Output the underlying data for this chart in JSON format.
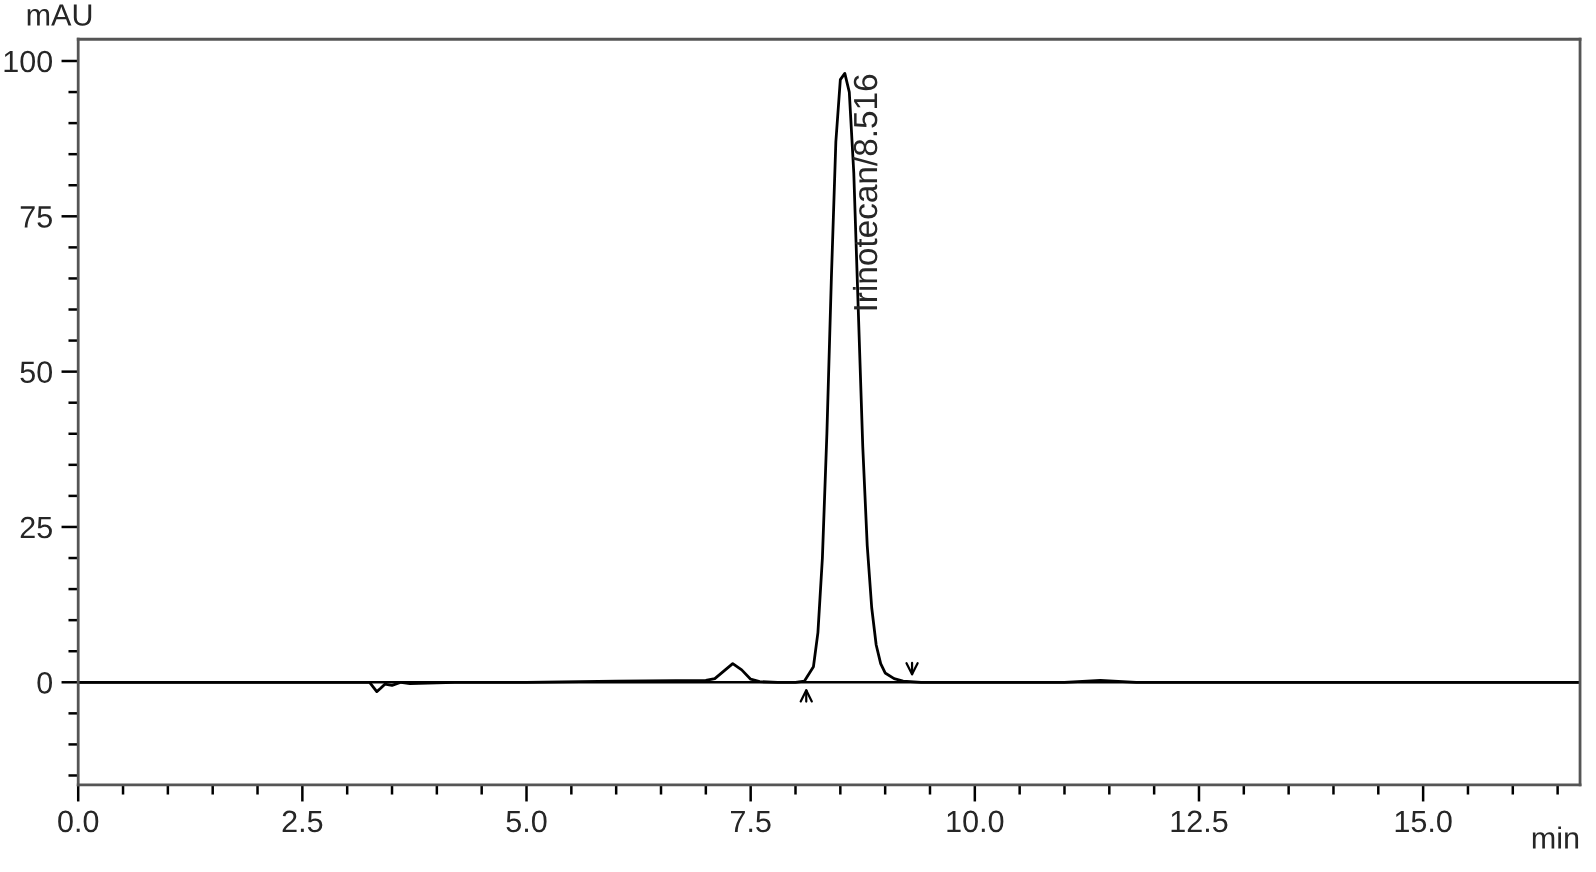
{
  "chart_data": {
    "type": "line",
    "xlabel": "min",
    "ylabel": "mAU",
    "series": [
      {
        "color": "#000000",
        "x": [
          0,
          1.0,
          2.0,
          3.0,
          3.25,
          3.33,
          3.37,
          3.42,
          3.5,
          3.6,
          3.7,
          4.2,
          5.0,
          6.0,
          7.0,
          7.1,
          7.2,
          7.3,
          7.4,
          7.5,
          7.6,
          7.8,
          8.0,
          8.1,
          8.2,
          8.25,
          8.3,
          8.35,
          8.4,
          8.45,
          8.5,
          8.55,
          8.6,
          8.65,
          8.7,
          8.75,
          8.8,
          8.85,
          8.9,
          8.95,
          9.0,
          9.1,
          9.2,
          9.4,
          10.0,
          11.0,
          11.4,
          11.8,
          13.0,
          16.75
        ],
        "values": [
          0,
          0,
          0,
          0,
          0,
          -1.5,
          -1.0,
          -0.3,
          -0.5,
          0,
          -0.2,
          0,
          0,
          0.2,
          0.3,
          0.6,
          1.8,
          3.0,
          2.0,
          0.5,
          0.1,
          0,
          0,
          0.2,
          2.5,
          8,
          20,
          40,
          65,
          87,
          97,
          98,
          95,
          82,
          60,
          38,
          22,
          12,
          6,
          3,
          1.5,
          0.6,
          0.2,
          0,
          0,
          0,
          0.3,
          0,
          0,
          0
        ]
      }
    ],
    "annotations": [
      {
        "text": "Irinotecan/8.516",
        "x": 8.516,
        "y": 98
      }
    ],
    "xlim": [
      0,
      16.75
    ],
    "ylim": [
      -16.5,
      103.5
    ],
    "xticks": [
      {
        "value": 0,
        "label": "0.0"
      },
      {
        "value": 0.5,
        "label": null
      },
      {
        "value": 1,
        "label": null
      },
      {
        "value": 1.5,
        "label": null
      },
      {
        "value": 2,
        "label": null
      },
      2.5,
      {
        "value": 3,
        "label": null
      },
      {
        "value": 3.5,
        "label": null
      },
      {
        "value": 4,
        "label": null
      },
      {
        "value": 4.5,
        "label": null
      },
      {
        "value": 5,
        "label": "5.0"
      },
      {
        "value": 5.5,
        "label": null
      },
      {
        "value": 6,
        "label": null
      },
      {
        "value": 6.5,
        "label": null
      },
      {
        "value": 7,
        "label": null
      },
      7.5,
      {
        "value": 8,
        "label": null
      },
      {
        "value": 8.5,
        "label": null
      },
      {
        "value": 9,
        "label": null
      },
      {
        "value": 9.5,
        "label": null
      },
      {
        "value": 10,
        "label": "10.0"
      },
      {
        "value": 10.5,
        "label": null
      },
      {
        "value": 11,
        "label": null
      },
      {
        "value": 11.5,
        "label": null
      },
      {
        "value": 12,
        "label": null
      },
      12.5,
      {
        "value": 13,
        "label": null
      },
      {
        "value": 13.5,
        "label": null
      },
      {
        "value": 14,
        "label": null
      },
      {
        "value": 14.5,
        "label": null
      },
      {
        "value": 15,
        "label": "15.0"
      },
      {
        "value": 15.5,
        "label": null
      },
      {
        "value": 16,
        "label": null
      },
      {
        "value": 16.5,
        "label": null
      }
    ],
    "yticks": [
      {
        "value": -15,
        "label": null
      },
      {
        "value": -10,
        "label": null
      },
      {
        "value": -5,
        "label": null
      },
      0,
      {
        "value": 5,
        "label": null
      },
      {
        "value": 10,
        "label": null
      },
      {
        "value": 15,
        "label": null
      },
      {
        "value": 20,
        "label": null
      },
      25,
      {
        "value": 30,
        "label": null
      },
      {
        "value": 35,
        "label": null
      },
      {
        "value": 40,
        "label": null
      },
      {
        "value": 45,
        "label": null
      },
      50,
      {
        "value": 55,
        "label": null
      },
      {
        "value": 60,
        "label": null
      },
      {
        "value": 65,
        "label": null
      },
      {
        "value": 70,
        "label": null
      },
      75,
      {
        "value": 80,
        "label": null
      },
      {
        "value": 85,
        "label": null
      },
      {
        "value": 90,
        "label": null
      },
      {
        "value": 95,
        "label": null
      },
      100
    ],
    "ref_lines": [
      {
        "axis": "y",
        "value": 0,
        "color": "#000000"
      }
    ],
    "grid": false,
    "legend": false
  }
}
